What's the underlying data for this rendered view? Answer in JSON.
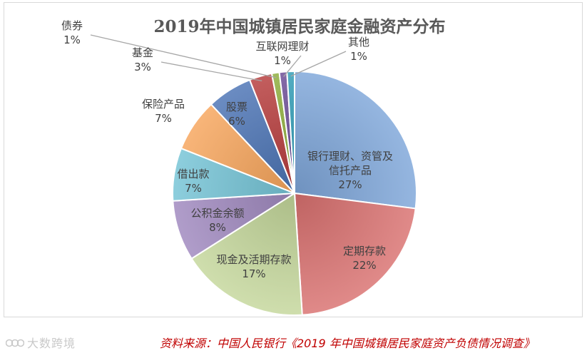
{
  "chart_data": {
    "type": "pie",
    "title": "2019年中国城镇居民家庭金融资产分布",
    "start_angle_deg": 0,
    "direction": "clockwise",
    "slices": [
      {
        "label": "银行理财、资管及信托产品",
        "label_lines": [
          "银行理财、资管及",
          "信托产品"
        ],
        "value": 27,
        "pct_label": "27%",
        "color": "#7ea6d9"
      },
      {
        "label": "定期存款",
        "label_lines": [
          "定期存款"
        ],
        "value": 22,
        "pct_label": "22%",
        "color": "#d9706f"
      },
      {
        "label": "现金及活期存款",
        "label_lines": [
          "现金及活期存款"
        ],
        "value": 17,
        "pct_label": "17%",
        "color": "#c4d79b"
      },
      {
        "label": "公积金余额",
        "label_lines": [
          "公积金余额"
        ],
        "value": 8,
        "pct_label": "8%",
        "color": "#9f88be"
      },
      {
        "label": "借出款",
        "label_lines": [
          "借出款"
        ],
        "value": 7,
        "pct_label": "7%",
        "color": "#74c3d6"
      },
      {
        "label": "保险产品",
        "label_lines": [
          "保险产品"
        ],
        "value": 7,
        "pct_label": "7%",
        "color": "#f7a55b"
      },
      {
        "label": "股票",
        "label_lines": [
          "股票"
        ],
        "value": 6,
        "pct_label": "6%",
        "color": "#4a73b4"
      },
      {
        "label": "基金",
        "label_lines": [
          "基金"
        ],
        "value": 3,
        "pct_label": "3%",
        "color": "#b63b3b"
      },
      {
        "label": "债券",
        "label_lines": [
          "债券"
        ],
        "value": 1,
        "pct_label": "1%",
        "color": "#8cac3a"
      },
      {
        "label": "互联网理财",
        "label_lines": [
          "互联网理财"
        ],
        "value": 1,
        "pct_label": "1%",
        "color": "#6a4a95"
      },
      {
        "label": "其他",
        "label_lines": [
          "其他"
        ],
        "value": 1,
        "pct_label": "1%",
        "color": "#2f9bb5"
      }
    ]
  },
  "watermark": "大数跨境",
  "source_note": "资料来源：中国人民银行《2019 年中国城镇居民家庭资产负债情况调查》"
}
